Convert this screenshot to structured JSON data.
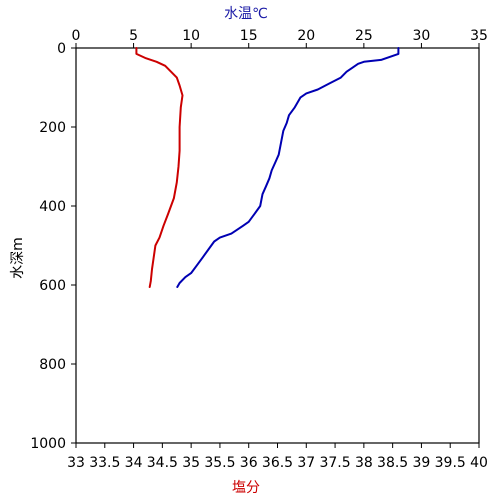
{
  "chart_data": {
    "type": "line",
    "y_axis": {
      "label": "水深m",
      "range": [
        0,
        1000
      ],
      "inverted": true,
      "ticks": [
        0,
        200,
        400,
        600,
        800,
        1000
      ],
      "tick_labels": [
        "0",
        "200",
        "400",
        "600",
        "800",
        "1000"
      ]
    },
    "x_axis_top": {
      "label": "水温℃",
      "label_color": "#1a1aa6",
      "range": [
        0,
        35
      ],
      "ticks": [
        0,
        5,
        10,
        15,
        20,
        25,
        30,
        35
      ],
      "tick_labels": [
        "0",
        "5",
        "10",
        "15",
        "20",
        "25",
        "30",
        "35"
      ]
    },
    "x_axis_bottom": {
      "label": "塩分",
      "label_color": "#cc0000",
      "range": [
        33,
        40
      ],
      "ticks": [
        33,
        33.5,
        34,
        34.5,
        35,
        35.5,
        36,
        36.5,
        37,
        37.5,
        38,
        38.5,
        39,
        39.5,
        40
      ],
      "tick_labels": [
        "33",
        "33.5",
        "34",
        "34.5",
        "35",
        "35.5",
        "36",
        "36.5",
        "37",
        "37.5",
        "38",
        "38.5",
        "39",
        "39.5",
        "40"
      ]
    },
    "grid": false,
    "series": [
      {
        "axis": "top",
        "color": "#0000b3",
        "points": [
          [
            28.0,
            0
          ],
          [
            28.0,
            15
          ],
          [
            26.5,
            30
          ],
          [
            25.0,
            35
          ],
          [
            24.5,
            40
          ],
          [
            24.0,
            50
          ],
          [
            23.5,
            60
          ],
          [
            23.0,
            75
          ],
          [
            22.0,
            90
          ],
          [
            21.0,
            105
          ],
          [
            20.0,
            115
          ],
          [
            19.5,
            125
          ],
          [
            19.0,
            150
          ],
          [
            18.5,
            170
          ],
          [
            18.3,
            190
          ],
          [
            18.0,
            210
          ],
          [
            17.8,
            240
          ],
          [
            17.6,
            270
          ],
          [
            17.3,
            290
          ],
          [
            17.0,
            310
          ],
          [
            16.8,
            330
          ],
          [
            16.5,
            350
          ],
          [
            16.2,
            370
          ],
          [
            16.0,
            400
          ],
          [
            15.5,
            420
          ],
          [
            15.0,
            440
          ],
          [
            14.5,
            450
          ],
          [
            14.0,
            460
          ],
          [
            13.5,
            470
          ],
          [
            12.5,
            480
          ],
          [
            12.0,
            490
          ],
          [
            11.5,
            510
          ],
          [
            11.0,
            530
          ],
          [
            10.5,
            550
          ],
          [
            10.0,
            570
          ],
          [
            9.5,
            580
          ],
          [
            9.0,
            595
          ],
          [
            8.8,
            605
          ]
        ]
      },
      {
        "axis": "bottom",
        "color": "#cc0000",
        "points": [
          [
            34.05,
            0
          ],
          [
            34.05,
            15
          ],
          [
            34.2,
            25
          ],
          [
            34.4,
            35
          ],
          [
            34.55,
            45
          ],
          [
            34.65,
            60
          ],
          [
            34.75,
            75
          ],
          [
            34.8,
            95
          ],
          [
            34.85,
            120
          ],
          [
            34.82,
            150
          ],
          [
            34.8,
            200
          ],
          [
            34.8,
            260
          ],
          [
            34.78,
            300
          ],
          [
            34.75,
            340
          ],
          [
            34.7,
            380
          ],
          [
            34.6,
            420
          ],
          [
            34.52,
            450
          ],
          [
            34.45,
            480
          ],
          [
            34.38,
            500
          ],
          [
            34.35,
            530
          ],
          [
            34.32,
            560
          ],
          [
            34.3,
            590
          ],
          [
            34.28,
            605
          ]
        ]
      }
    ]
  }
}
